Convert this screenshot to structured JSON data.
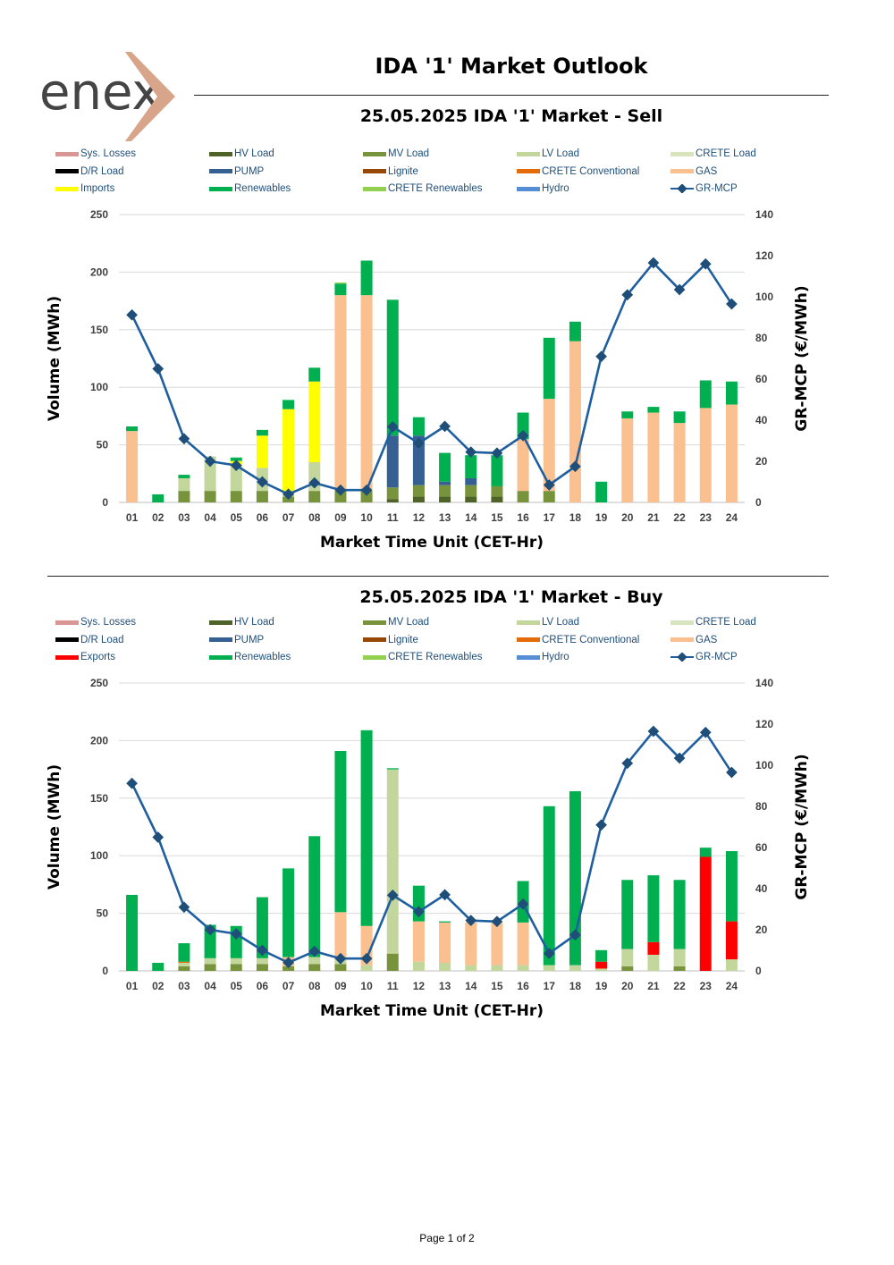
{
  "header": {
    "logo_text": "enex",
    "title": "IDA '1' Market Outlook"
  },
  "colors": {
    "Sys. Losses": "#d99694",
    "HV Load": "#4f6228",
    "MV Load": "#77933c",
    "LV Load": "#c3d69b",
    "CRETE Load": "#d7e4bd",
    "D/R Load": "#000000",
    "PUMP": "#376092",
    "Lignite": "#974706",
    "CRETE Conventional": "#e36c09",
    "GAS": "#fac090",
    "Imports": "#ffff00",
    "Exports": "#ff0000",
    "Renewables": "#00b050",
    "CRETE Renewables": "#92d050",
    "Hydro": "#558ed5",
    "GR-MCP": "#1f5fa0",
    "marker": "#1f4e79"
  },
  "chart_data": [
    {
      "type": "bar",
      "title": "25.05.2025  IDA '1' Market - Sell",
      "xlabel": "Market Time Unit (CET-Hr)",
      "ylabel": "Volume (MWh)",
      "y2label": "GR-MCP (€/MWh)",
      "ylim": [
        0,
        250
      ],
      "yticks": [
        "0",
        "50",
        "100",
        "150",
        "200",
        "250"
      ],
      "y2lim": [
        0,
        140
      ],
      "y2ticks": [
        "0",
        "20",
        "40",
        "60",
        "80",
        "100",
        "120",
        "140"
      ],
      "categories": [
        "01",
        "02",
        "03",
        "04",
        "05",
        "06",
        "07",
        "08",
        "09",
        "10",
        "11",
        "12",
        "13",
        "14",
        "15",
        "16",
        "17",
        "18",
        "19",
        "20",
        "21",
        "22",
        "23",
        "24"
      ],
      "legend": [
        "Sys. Losses",
        "HV Load",
        "MV Load",
        "LV Load",
        "CRETE Load",
        "D/R Load",
        "PUMP",
        "Lignite",
        "CRETE Conventional",
        "GAS",
        "Imports",
        "Renewables",
        "CRETE Renewables",
        "Hydro",
        "GR-MCP"
      ],
      "series": [
        {
          "name": "HV Load",
          "values": [
            0,
            0,
            0,
            0,
            0,
            0,
            0,
            0,
            0,
            0,
            3,
            5,
            5,
            5,
            5,
            0,
            0,
            0,
            0,
            0,
            0,
            0,
            0,
            0
          ]
        },
        {
          "name": "MV Load",
          "values": [
            0,
            0,
            10,
            10,
            10,
            10,
            5,
            10,
            10,
            10,
            10,
            10,
            10,
            10,
            9,
            10,
            10,
            0,
            0,
            0,
            0,
            0,
            0,
            0
          ]
        },
        {
          "name": "LV Load",
          "values": [
            0,
            0,
            11,
            30,
            23,
            20,
            5,
            25,
            0,
            0,
            0,
            0,
            0,
            0,
            0,
            0,
            0,
            0,
            0,
            0,
            0,
            0,
            0,
            0
          ]
        },
        {
          "name": "PUMP",
          "values": [
            0,
            0,
            0,
            0,
            0,
            0,
            0,
            0,
            0,
            0,
            45,
            43,
            3,
            6,
            0,
            0,
            0,
            0,
            0,
            0,
            0,
            0,
            0,
            0
          ]
        },
        {
          "name": "GAS",
          "values": [
            62,
            0,
            0,
            0,
            0,
            0,
            0,
            0,
            170,
            170,
            0,
            0,
            0,
            0,
            0,
            45,
            80,
            140,
            0,
            73,
            78,
            69,
            82,
            85
          ]
        },
        {
          "name": "Imports",
          "values": [
            0,
            0,
            0,
            0,
            3,
            28,
            71,
            70,
            0,
            0,
            0,
            0,
            0,
            0,
            0,
            0,
            0,
            0,
            0,
            0,
            0,
            0,
            0,
            0
          ]
        },
        {
          "name": "Renewables",
          "values": [
            4,
            7,
            3,
            0,
            3,
            5,
            8,
            12,
            10,
            30,
            118,
            16,
            25,
            20,
            27,
            23,
            53,
            17,
            18,
            6,
            5,
            10,
            24,
            20
          ]
        },
        {
          "name": "CRETE Renewables",
          "values": [
            0,
            0,
            0,
            0,
            0,
            0,
            0,
            0,
            1,
            0,
            0,
            0,
            0,
            0,
            0,
            0,
            0,
            0,
            0,
            0,
            0,
            0,
            0,
            0
          ]
        }
      ],
      "line": {
        "name": "GR-MCP",
        "values": [
          91.2,
          65,
          31,
          20,
          18,
          10,
          4,
          9.5,
          6,
          6,
          36.8,
          28.8,
          37,
          24.5,
          24,
          32.5,
          8.5,
          17.5,
          71,
          101,
          116.5,
          103.5,
          116,
          96.5
        ]
      }
    },
    {
      "type": "bar",
      "title": "25.05.2025  IDA '1' Market - Buy",
      "xlabel": "Market Time Unit (CET-Hr)",
      "ylabel": "Volume (MWh)",
      "y2label": "GR-MCP (€/MWh)",
      "ylim": [
        0,
        250
      ],
      "yticks": [
        "0",
        "50",
        "100",
        "150",
        "200",
        "250"
      ],
      "y2lim": [
        0,
        140
      ],
      "y2ticks": [
        "0",
        "20",
        "40",
        "60",
        "80",
        "100",
        "120",
        "140"
      ],
      "categories": [
        "01",
        "02",
        "03",
        "04",
        "05",
        "06",
        "07",
        "08",
        "09",
        "10",
        "11",
        "12",
        "13",
        "14",
        "15",
        "16",
        "17",
        "18",
        "19",
        "20",
        "21",
        "22",
        "23",
        "24"
      ],
      "legend": [
        "Sys. Losses",
        "HV Load",
        "MV Load",
        "LV Load",
        "CRETE Load",
        "D/R Load",
        "PUMP",
        "Lignite",
        "CRETE Conventional",
        "GAS",
        "Exports",
        "Renewables",
        "CRETE Renewables",
        "Hydro",
        "GR-MCP"
      ],
      "series": [
        {
          "name": "MV Load",
          "values": [
            0,
            0,
            4,
            6,
            6,
            6,
            4,
            6,
            6,
            0,
            15,
            0,
            0,
            0,
            0,
            0,
            0,
            0,
            0,
            4,
            0,
            4,
            0,
            0
          ]
        },
        {
          "name": "LV Load",
          "values": [
            0,
            0,
            3,
            5,
            5,
            5,
            0,
            6,
            5,
            5,
            160,
            8,
            7,
            5,
            5,
            5,
            5,
            5,
            2,
            15,
            14,
            15,
            0,
            10
          ]
        },
        {
          "name": "CRETE Conventional",
          "values": [
            0,
            0,
            1,
            0,
            0,
            0,
            0,
            0,
            0,
            0,
            0,
            0,
            0,
            0,
            0,
            0,
            0,
            0,
            0,
            0,
            0,
            0,
            0,
            0
          ]
        },
        {
          "name": "GAS",
          "values": [
            0,
            0,
            0,
            0,
            0,
            0,
            8,
            0,
            40,
            34,
            0,
            35,
            35,
            37,
            37,
            37,
            0,
            0,
            0,
            0,
            0,
            0,
            0,
            0
          ]
        },
        {
          "name": "Exports",
          "values": [
            0,
            0,
            0,
            0,
            0,
            0,
            0,
            0,
            0,
            0,
            0,
            0,
            0,
            0,
            0,
            0,
            0,
            0,
            6,
            0,
            11,
            0,
            99,
            33
          ]
        },
        {
          "name": "Renewables",
          "values": [
            66,
            7,
            16,
            29,
            28,
            53,
            77,
            105,
            140,
            170,
            1,
            31,
            1,
            0,
            0,
            36,
            138,
            151,
            10,
            60,
            58,
            60,
            8,
            61
          ]
        }
      ],
      "line": {
        "name": "GR-MCP",
        "values": [
          91.2,
          65,
          31,
          20,
          18,
          10,
          4,
          9.5,
          6,
          6,
          36.8,
          28.8,
          37,
          24.5,
          24,
          32.5,
          8.5,
          17.5,
          71,
          101,
          116.5,
          103.5,
          116,
          96.5
        ]
      }
    }
  ],
  "footer": {
    "page": "Page 1 of 2"
  }
}
